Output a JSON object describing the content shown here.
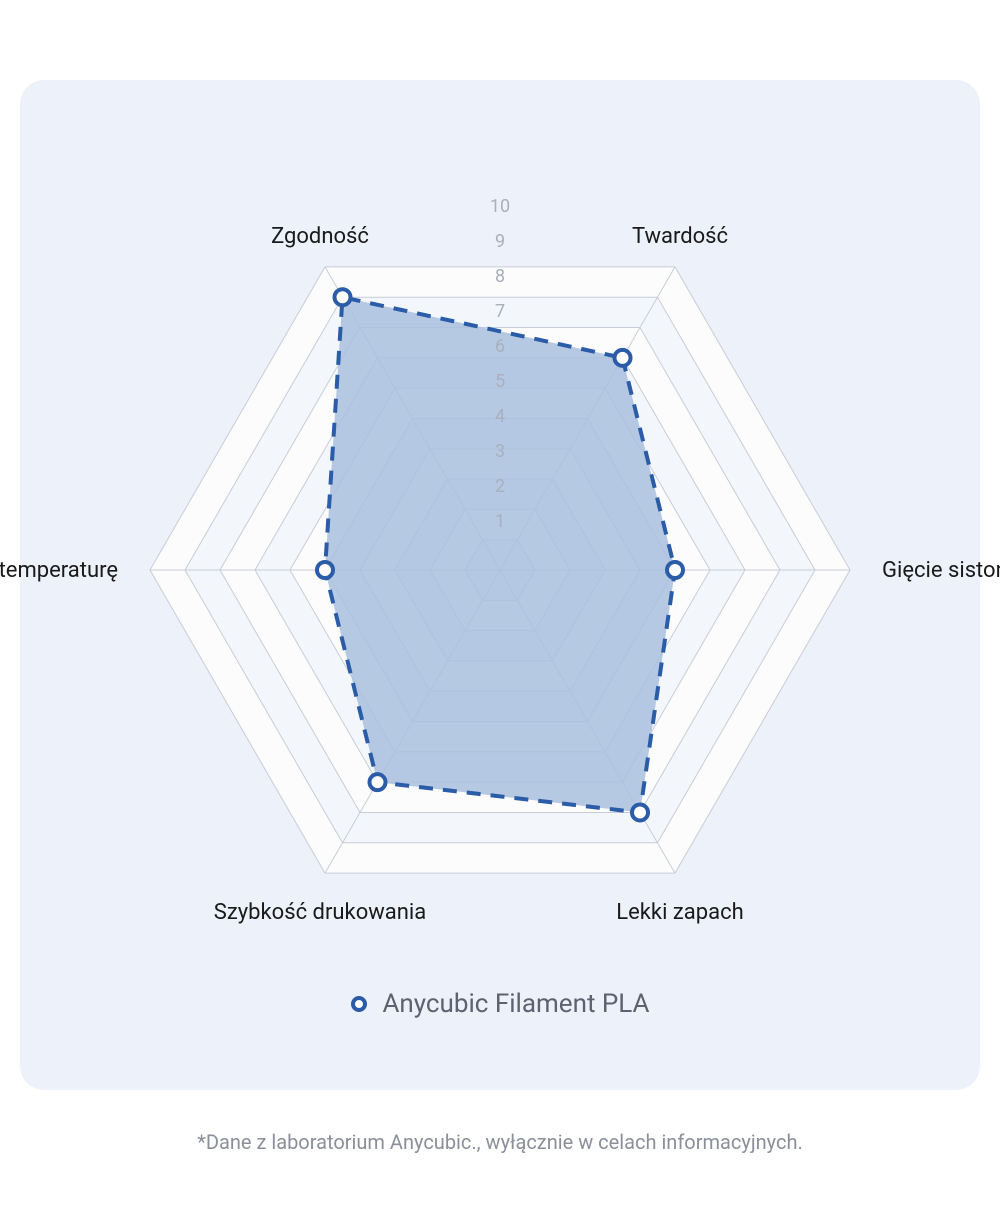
{
  "chart": {
    "type": "radar",
    "axes": [
      {
        "label": "Twardość",
        "value": 7
      },
      {
        "label": "Gięcie sistontu",
        "value": 5
      },
      {
        "label": "Lekki zapach",
        "value": 8
      },
      {
        "label": "Szybkość drukowania",
        "value": 7
      },
      {
        "label": "Odporność na temperaturę",
        "value": 5
      },
      {
        "label": "Zgodność",
        "value": 9
      }
    ],
    "max": 10,
    "ticks": [
      1,
      2,
      3,
      4,
      5,
      6,
      7,
      8,
      9,
      10
    ],
    "grid_color": "#c7cdd8",
    "grid_band_colors": [
      "#fcfcfd",
      "#f3f6fb"
    ],
    "background_color": "#edf1f9",
    "series": {
      "name": "Anycubic Filament PLA",
      "fill_color": "#a9bfde",
      "fill_opacity": 0.85,
      "stroke_color": "#2a5ca8",
      "stroke_width": 4,
      "stroke_dash": "14 10",
      "marker_radius": 8,
      "marker_fill": "#ffffff",
      "marker_stroke": "#2a5ca8",
      "marker_stroke_width": 4
    },
    "axis_label_fontsize": 22,
    "axis_label_color": "#1a1a1a",
    "tick_label_color": "#a9b0bc",
    "tick_label_fontsize": 18
  },
  "legend": {
    "label": "Anycubic Filament PLA"
  },
  "footnote": "*Dane z laboratorium Anycubic., wyłącznie w celach informacyjnych."
}
